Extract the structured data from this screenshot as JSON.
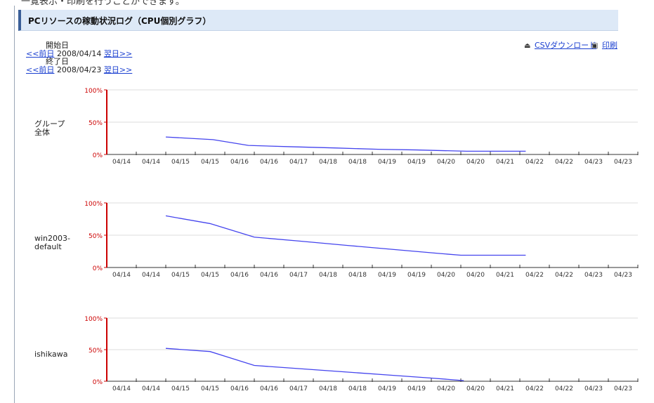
{
  "page": {
    "header_title": "PCリソースの稼動状況ログ（CPU個別グラフ）",
    "top_cut_text": "一覧表示・印刷を行うことができます。"
  },
  "date_filters": {
    "start": {
      "label": "開始日",
      "prev": "<<前日",
      "date": "2008/04/14",
      "next": "翌日>>"
    },
    "end": {
      "label": "終了日",
      "prev": "<<前日",
      "date": "2008/04/23",
      "next": "翌日>>"
    }
  },
  "actions": {
    "csv_download": "CSVダウンロード",
    "print": "印刷"
  },
  "axis": {
    "y_ticks": [
      "100%",
      "50%",
      "0%"
    ],
    "x_ticks": [
      "04/14",
      "04/14",
      "04/15",
      "04/15",
      "04/16",
      "04/16",
      "04/17",
      "04/18",
      "04/18",
      "04/19",
      "04/19",
      "04/20",
      "04/20",
      "04/21",
      "04/22",
      "04/22",
      "04/23",
      "04/23"
    ]
  },
  "colors": {
    "axis_red": "#cc0000",
    "line_blue": "#4444ee",
    "grid": "#dddddd",
    "link": "#1a3fd0",
    "header_bg": "#dde9f7"
  },
  "chart_data": [
    {
      "type": "line",
      "name": "グループ\n全体",
      "ylim": [
        0,
        100
      ],
      "x": [
        2,
        3.6,
        4.8,
        6.2,
        7.8,
        9.2,
        10.5,
        12.2,
        13.5,
        14.2
      ],
      "y": [
        27,
        23,
        14,
        12,
        10,
        8,
        7,
        5,
        5,
        5
      ]
    },
    {
      "type": "line",
      "name": "win2003-\ndefault",
      "ylim": [
        0,
        100
      ],
      "x": [
        2,
        3.5,
        5.0,
        6.5,
        8.2,
        9.7,
        11.2,
        12.0,
        14.2
      ],
      "y": [
        80,
        68,
        47,
        41,
        34,
        28,
        22,
        19,
        19
      ]
    },
    {
      "type": "line",
      "name": "ishikawa",
      "ylim": [
        0,
        100
      ],
      "x": [
        2,
        3.5,
        5.0,
        6.5,
        8.0,
        9.5,
        11.0,
        12.1
      ],
      "y": [
        52,
        47,
        25,
        20,
        15,
        10,
        5,
        1
      ]
    }
  ]
}
